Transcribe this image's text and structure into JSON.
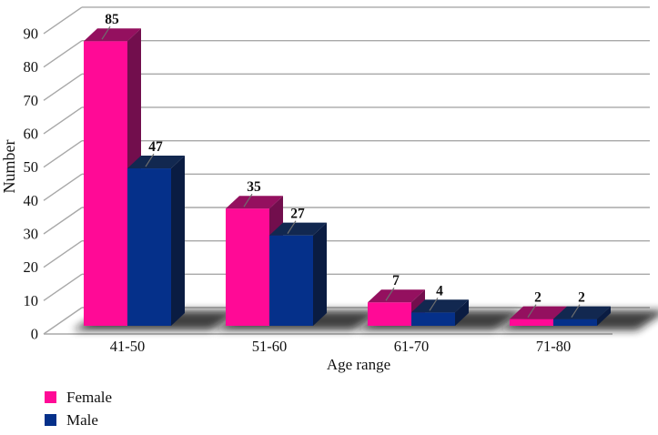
{
  "chart_data": {
    "type": "bar",
    "projection": "3d-clustered-column",
    "title": "",
    "categories": [
      "41-50",
      "51-60",
      "61-70",
      "71-80"
    ],
    "series": [
      {
        "name": "Female",
        "values": [
          85,
          35,
          7,
          2
        ],
        "color_front": "#FF0A96",
        "color_top": "#94105F",
        "color_side": "#720E4D"
      },
      {
        "name": "Male",
        "values": [
          47,
          27,
          4,
          2
        ],
        "color_front": "#05308A",
        "color_top": "#122850",
        "color_side": "#0A1C42"
      }
    ],
    "xlabel": "Age range",
    "ylabel": "Number",
    "ylim": [
      0,
      90
    ],
    "ytick_step": 10,
    "yticks": [
      "0",
      "10",
      "20",
      "30",
      "40",
      "50",
      "60",
      "70",
      "80",
      "90"
    ],
    "grid": true,
    "gridline_color": "#A8A8A8",
    "leader_line_color": "#6E6E6E",
    "value_label_color": "#111111",
    "legend_position": "bottom-left",
    "data_labels_shown": true
  },
  "legend": {
    "items": [
      {
        "label": "Female",
        "color": "#FF0A96"
      },
      {
        "label": "Male",
        "color": "#05308A"
      }
    ]
  }
}
